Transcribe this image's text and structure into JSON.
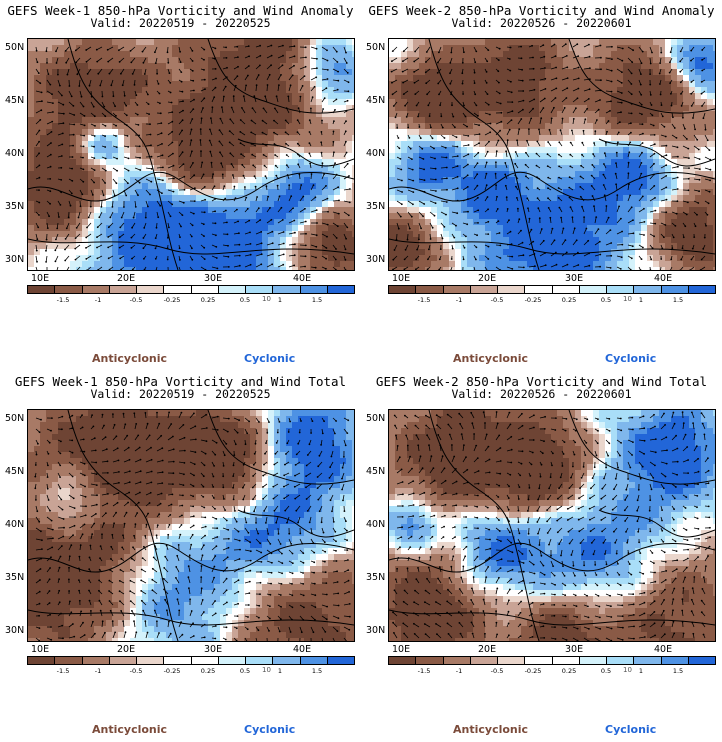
{
  "panels": [
    {
      "title": "GEFS Week-1 850-hPa Vorticity and Wind Anomaly",
      "valid": "Valid: 20220519 - 20220525"
    },
    {
      "title": "GEFS Week-2 850-hPa Vorticity and Wind Anomaly",
      "valid": "Valid: 20220526 - 20220601"
    },
    {
      "title": "GEFS Week-1 850-hPa Vorticity and Wind Total",
      "valid": "Valid: 20220519 - 20220525"
    },
    {
      "title": "GEFS Week-2 850-hPa Vorticity and Wind Total",
      "valid": "Valid: 20220526 - 20220601"
    }
  ],
  "lat_labels": [
    "50N",
    "45N",
    "40N",
    "35N",
    "30N"
  ],
  "lon_labels": [
    "10E",
    "20E",
    "30E",
    "40E"
  ],
  "colorbar": {
    "labels": [
      "-1.5",
      "-1",
      "-0.5",
      "-0.25",
      "0.25",
      "0.5",
      "1",
      "1.5"
    ],
    "unit": "10",
    "colors": [
      "#6e4434",
      "#8a5a46",
      "#a87a66",
      "#c9a496",
      "#ead6cc",
      "#ffffff",
      "#ffffff",
      "#d4f2fb",
      "#a9def8",
      "#7fb7ec",
      "#4e92e4",
      "#2266d8"
    ]
  },
  "legend": {
    "anticyclonic": "Anticyclonic",
    "cyclonic": "Cyclonic"
  },
  "colors": {
    "anticyclonic": "#7b4b3a",
    "cyclonic": "#2266d8"
  }
}
